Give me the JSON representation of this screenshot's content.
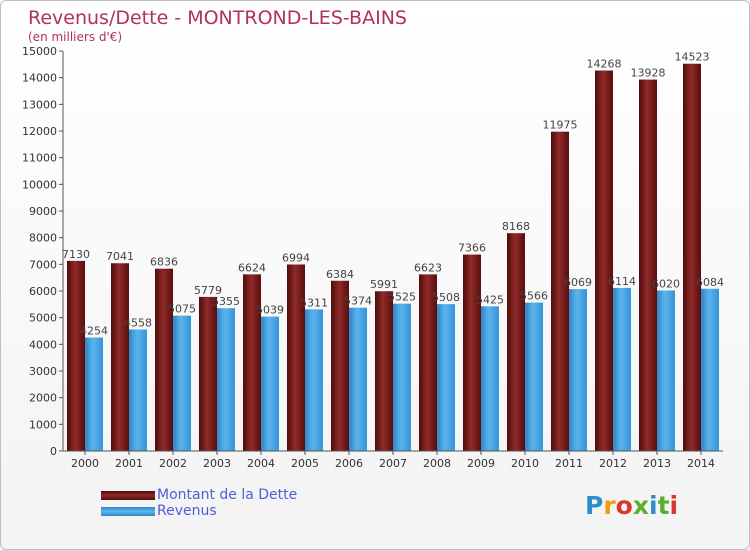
{
  "title": "Revenus/Dette - MONTROND-LES-BAINS",
  "subtitle": "(en milliers d'€)",
  "legend": {
    "debt_label": "Montant de la Dette",
    "revenue_label": "Revenus"
  },
  "logo": {
    "text": "Proxiti"
  },
  "colors": {
    "debt": "#7a1818",
    "revenue": "#3a9bdc",
    "title": "#b03060",
    "legend_text": "#4d5fd8"
  },
  "chart_data": {
    "type": "bar",
    "categories": [
      "2000",
      "2001",
      "2002",
      "2003",
      "2004",
      "2005",
      "2006",
      "2007",
      "2008",
      "2009",
      "2010",
      "2011",
      "2012",
      "2013",
      "2014"
    ],
    "series": [
      {
        "name": "Montant de la Dette",
        "values": [
          7130,
          7041,
          6836,
          5779,
          6624,
          6994,
          6384,
          5991,
          6623,
          7366,
          8168,
          11975,
          14268,
          13928,
          14523
        ]
      },
      {
        "name": "Revenus",
        "values": [
          4254,
          4558,
          5075,
          5355,
          5039,
          5311,
          5374,
          5525,
          5508,
          5425,
          5566,
          6069,
          6114,
          6020,
          6084
        ]
      }
    ],
    "y_ticks": [
      0,
      1000,
      2000,
      3000,
      4000,
      5000,
      6000,
      7000,
      8000,
      9000,
      10000,
      11000,
      12000,
      13000,
      14000,
      15000
    ],
    "ylim": [
      0,
      15000
    ],
    "grid": false
  }
}
